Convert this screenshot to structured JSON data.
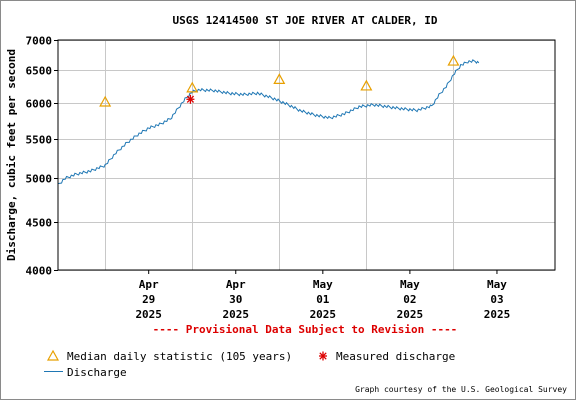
{
  "chart_data": {
    "type": "line",
    "title": "USGS 12414500 ST JOE RIVER AT CALDER, ID",
    "ylabel": "Discharge, cubic feet per second",
    "xlabel": "",
    "y_scale": "log",
    "ylim": [
      4000,
      7000
    ],
    "y_ticks": [
      4000,
      4500,
      5000,
      5500,
      6000,
      6500,
      7000
    ],
    "x_range": [
      "2025-04-28T11:00",
      "2025-05-04T04:00"
    ],
    "x_ticks": [
      {
        "date": "2025-04-29T00:00",
        "label": [
          "Apr",
          "29",
          "2025"
        ]
      },
      {
        "date": "2025-04-30T00:00",
        "label": [
          "Apr",
          "30",
          "2025"
        ]
      },
      {
        "date": "2025-05-01T00:00",
        "label": [
          "May",
          "01",
          "2025"
        ]
      },
      {
        "date": "2025-05-02T00:00",
        "label": [
          "May",
          "02",
          "2025"
        ]
      },
      {
        "date": "2025-05-03T00:00",
        "label": [
          "May",
          "03",
          "2025"
        ]
      }
    ],
    "grid": true,
    "series": [
      {
        "name": "Discharge",
        "color": "#1f77b4",
        "points": [
          [
            "2025-04-28T11:00",
            4920
          ],
          [
            "2025-04-28T13:00",
            5000
          ],
          [
            "2025-04-28T16:00",
            5050
          ],
          [
            "2025-04-28T20:00",
            5090
          ],
          [
            "2025-04-29T00:00",
            5160
          ],
          [
            "2025-04-29T03:00",
            5320
          ],
          [
            "2025-04-29T06:00",
            5450
          ],
          [
            "2025-04-29T09:00",
            5560
          ],
          [
            "2025-04-29T12:00",
            5650
          ],
          [
            "2025-04-29T15:00",
            5700
          ],
          [
            "2025-04-29T18:00",
            5780
          ],
          [
            "2025-04-29T20:00",
            5920
          ],
          [
            "2025-04-29T22:00",
            6060
          ],
          [
            "2025-04-30T00:00",
            6170
          ],
          [
            "2025-04-30T02:00",
            6200
          ],
          [
            "2025-04-30T06:00",
            6190
          ],
          [
            "2025-04-30T10:00",
            6150
          ],
          [
            "2025-04-30T14:00",
            6130
          ],
          [
            "2025-04-30T18:00",
            6150
          ],
          [
            "2025-04-30T22:00",
            6080
          ],
          [
            "2025-05-01T02:00",
            5990
          ],
          [
            "2025-05-01T06:00",
            5890
          ],
          [
            "2025-05-01T10:00",
            5830
          ],
          [
            "2025-05-01T14:00",
            5790
          ],
          [
            "2025-05-01T18:00",
            5850
          ],
          [
            "2025-05-01T22:00",
            5950
          ],
          [
            "2025-05-02T02:00",
            5980
          ],
          [
            "2025-05-02T06:00",
            5950
          ],
          [
            "2025-05-02T10:00",
            5920
          ],
          [
            "2025-05-02T14:00",
            5900
          ],
          [
            "2025-05-02T18:00",
            5960
          ],
          [
            "2025-05-02T20:00",
            6120
          ],
          [
            "2025-05-02T22:00",
            6250
          ],
          [
            "2025-05-03T00:00",
            6430
          ],
          [
            "2025-05-03T02:00",
            6580
          ],
          [
            "2025-05-03T04:00",
            6640
          ],
          [
            "2025-05-03T06:00",
            6650
          ],
          [
            "2025-05-03T07:00",
            6620
          ]
        ]
      },
      {
        "name": "Median daily statistic (105 years)",
        "color": "#e8a000",
        "marker": "triangle",
        "points": [
          [
            "2025-04-29T00:00",
            6020
          ],
          [
            "2025-04-30T00:00",
            6230
          ],
          [
            "2025-05-01T00:00",
            6360
          ],
          [
            "2025-05-02T00:00",
            6260
          ],
          [
            "2025-05-03T00:00",
            6650
          ]
        ]
      },
      {
        "name": "Measured discharge",
        "color": "#dd0000",
        "marker": "asterisk",
        "points": [
          [
            "2025-04-29T23:30",
            6060
          ]
        ]
      }
    ],
    "legend": [
      {
        "label": "Median daily statistic (105 years)",
        "marker": "triangle"
      },
      {
        "label": "Measured discharge",
        "marker": "asterisk"
      },
      {
        "label": "Discharge",
        "marker": "line"
      }
    ],
    "legend_position": "bottom-left",
    "notice": "---- Provisional Data Subject to Revision ----",
    "credit": "Graph courtesy of the U.S. Geological Survey"
  }
}
